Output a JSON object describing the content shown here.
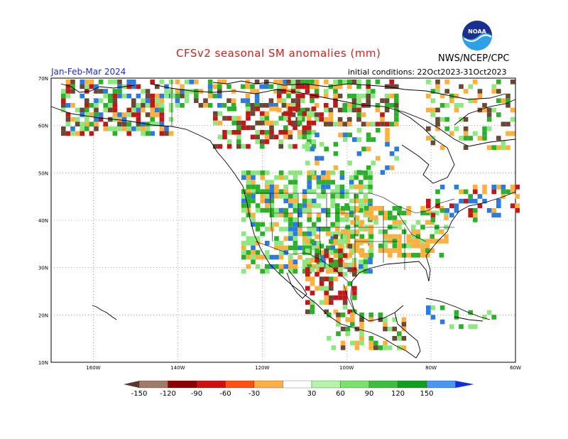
{
  "header": {
    "title": "CFSv2 seasonal SM anomalies (mm)",
    "agency": "NWS/NCEP/CPC",
    "period": "Jan-Feb-Mar 2024",
    "initial_conditions": "initial conditions: 22Oct2023-31Oct2023",
    "logo_text": "NOAA"
  },
  "map": {
    "lat_labels": [
      "70N",
      "60N",
      "50N",
      "40N",
      "30N",
      "20N",
      "10N"
    ],
    "lon_labels": [
      "160W",
      "140W",
      "120W",
      "100W",
      "80W",
      "60W"
    ],
    "gridlines": "dotted"
  },
  "colorbar": {
    "labels": [
      "-150",
      "-120",
      "-90",
      "-60",
      "-30",
      "30",
      "60",
      "90",
      "120",
      "150"
    ],
    "colors": [
      "#5a3a2a",
      "#a07a68",
      "#900000",
      "#d01010",
      "#ff5010",
      "#ffb040",
      "#ffffff",
      "#b4f4a8",
      "#78e26a",
      "#3cc03c",
      "#10a020",
      "#4a96f0",
      "#1030e0"
    ]
  },
  "colors": {
    "title": "#d22020",
    "period": "#2030c0",
    "dry_dark": "#6a4838",
    "dry_red": "#c01818",
    "dry_orange": "#ffb040",
    "wet_light": "#8ee882",
    "wet_green": "#2cb02c",
    "wet_blue": "#2a7ae0"
  }
}
